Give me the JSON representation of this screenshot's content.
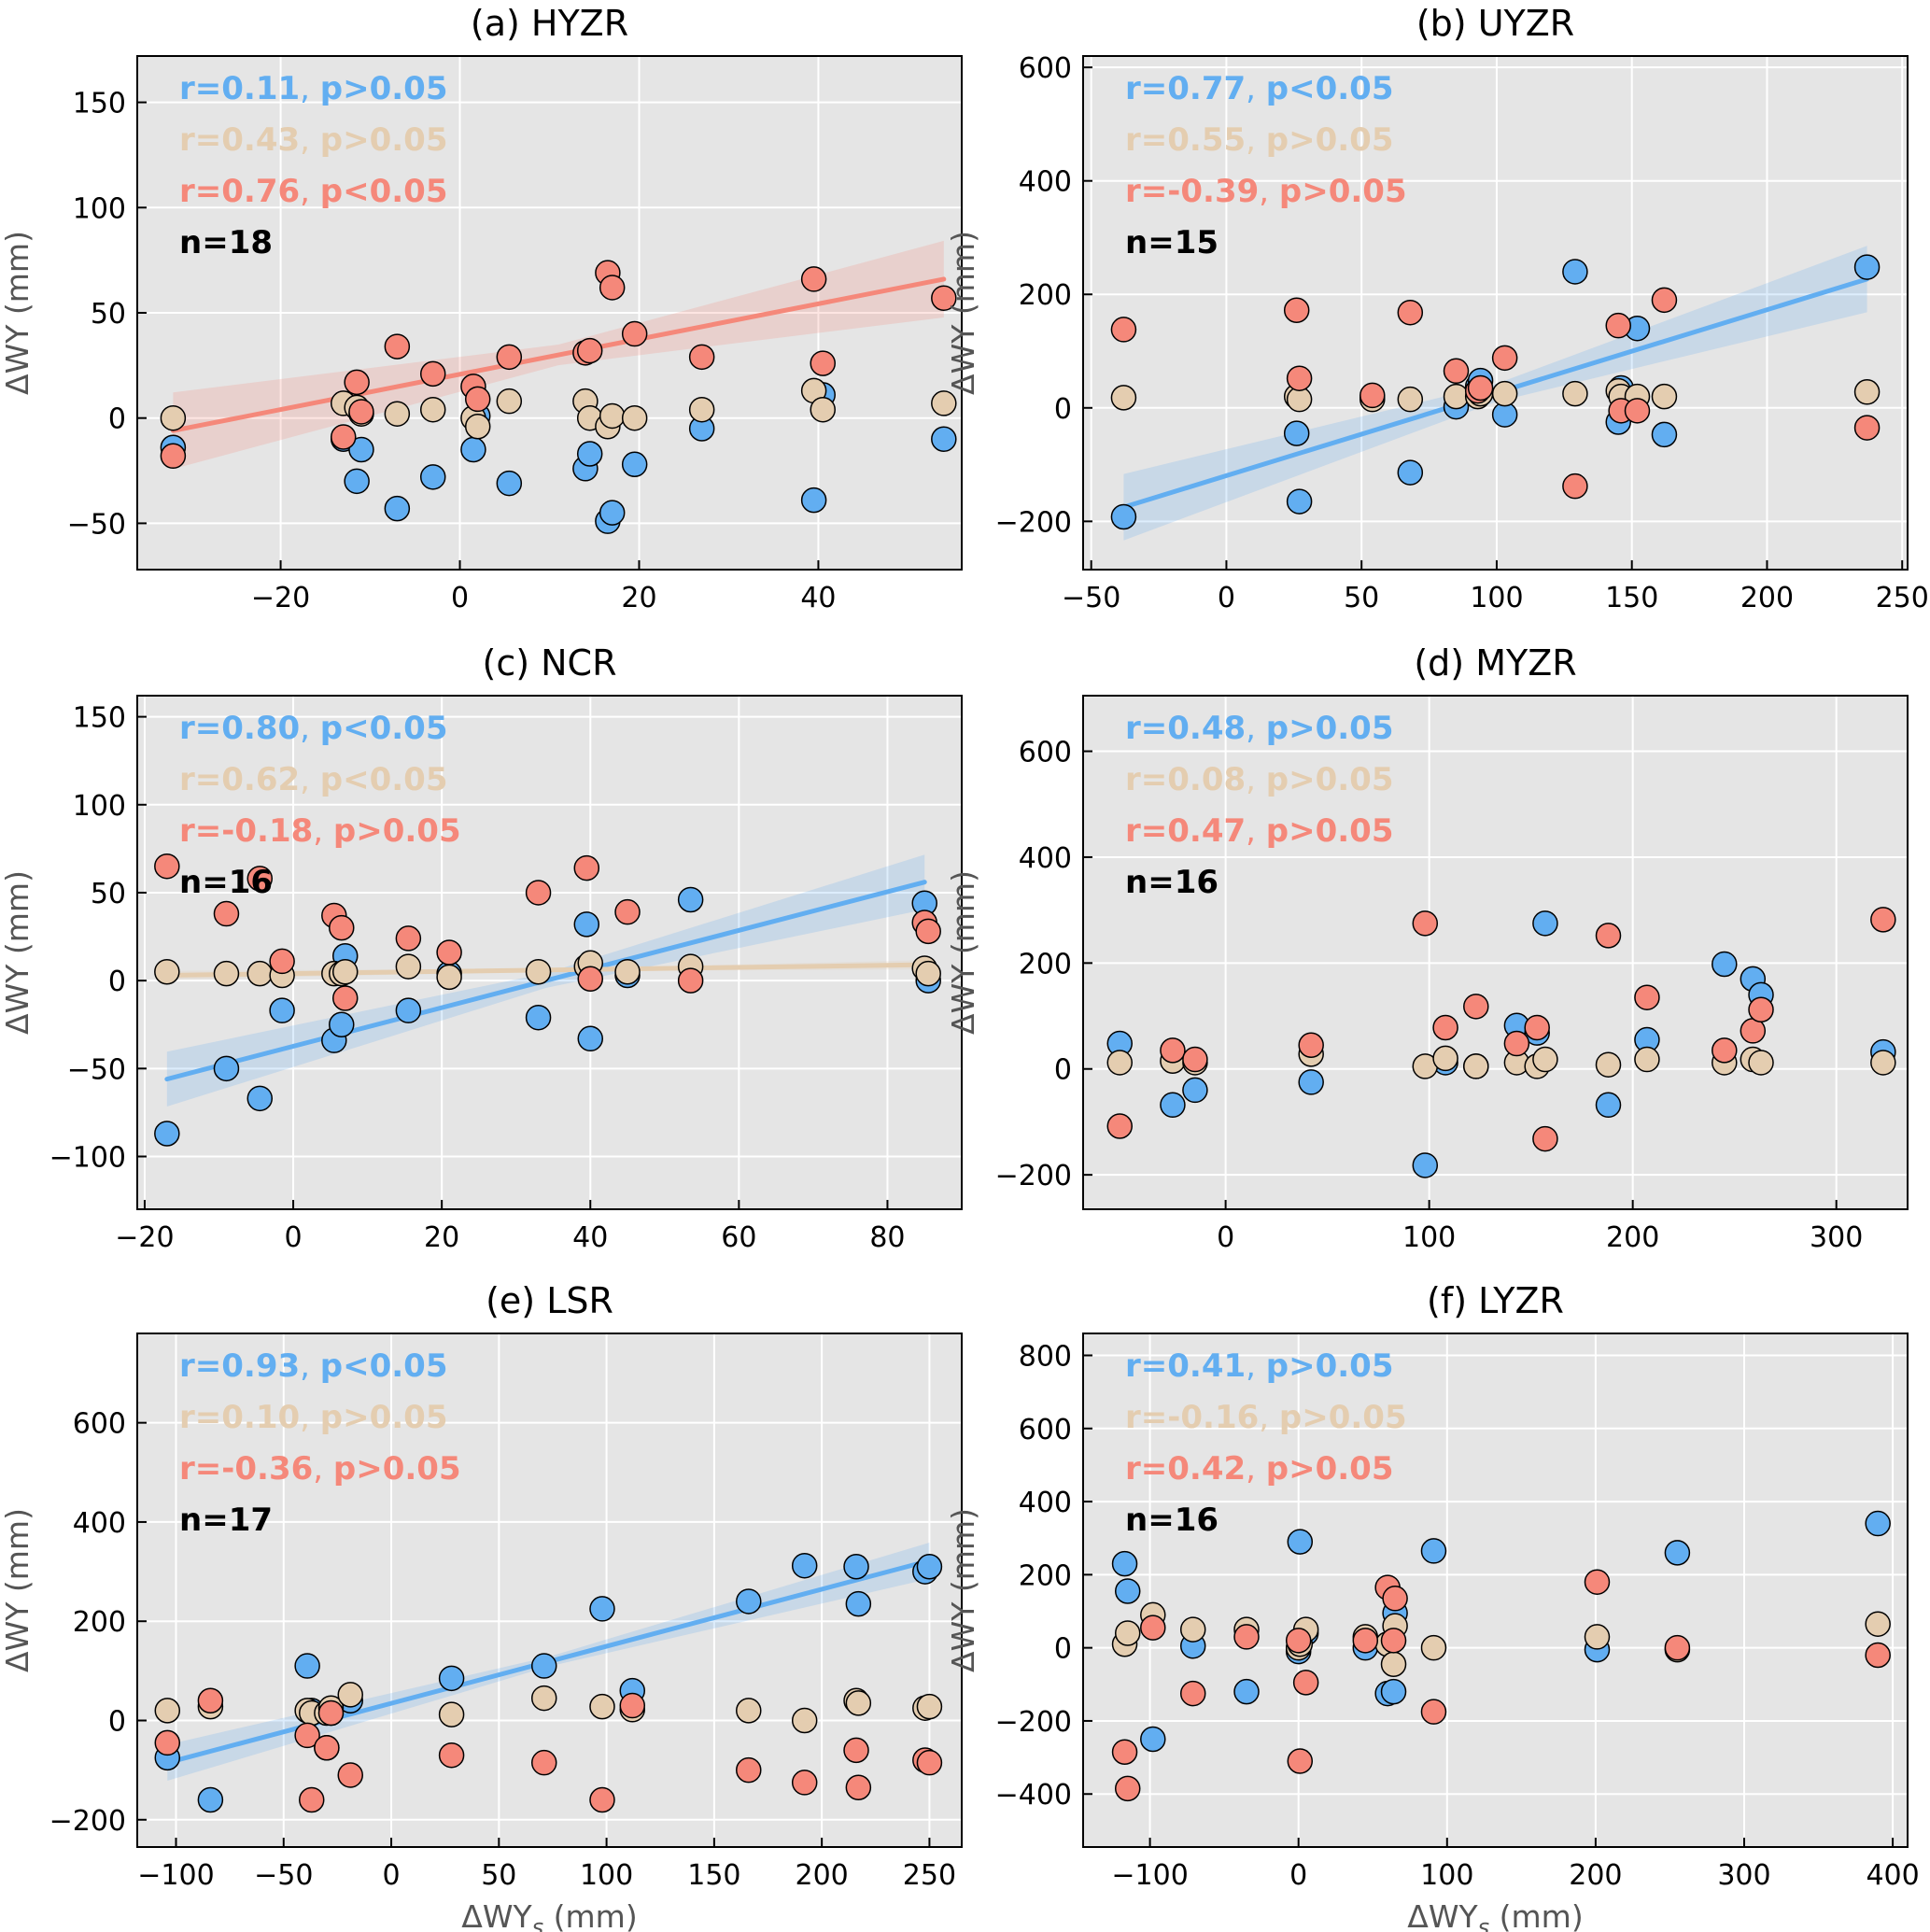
{
  "figure": {
    "xlabel": "ΔWYs (mm)",
    "xlabel_prefix": "ΔWY",
    "xlabel_subscript": "s",
    "xlabel_suffix": " (mm)",
    "ylabel": "ΔWY (mm)",
    "series_colors": {
      "blue": "#62aef1",
      "tan": "#e4cdb0",
      "red": "#f5887a"
    },
    "background": "#e5e5e5"
  },
  "chart_data": [
    {
      "id": "a",
      "type": "scatter",
      "title": "(a) HYZR",
      "xlim": [
        -36,
        56
      ],
      "ylim": [
        -72,
        172
      ],
      "xticks": [
        -20,
        0,
        20,
        40
      ],
      "yticks": [
        -50,
        0,
        50,
        100,
        150
      ],
      "stats": [
        {
          "r": "r=0.11",
          "p": "p>0.05",
          "color": "#62aef1"
        },
        {
          "r": "r=0.43",
          "p": "p>0.05",
          "color": "#e4cdb0"
        },
        {
          "r": "r=0.76",
          "p": "p<0.05",
          "color": "#f5887a"
        }
      ],
      "n": "n=18",
      "fits": [
        {
          "series": "red",
          "x": [
            -32,
            54
          ],
          "y": [
            -6,
            66
          ],
          "band": 14
        }
      ],
      "x": [
        -32,
        -13,
        -11.5,
        -11,
        -7,
        -3,
        1.5,
        2,
        5.5,
        14,
        14.5,
        16.5,
        17,
        19.5,
        27,
        39.5,
        40.5,
        54
      ],
      "series": [
        {
          "name": "blue",
          "values": [
            -14,
            -10,
            -30,
            -15,
            -43,
            -28,
            -15,
            1,
            -31,
            -24,
            -17,
            -49,
            -45,
            -22,
            -5,
            -39,
            11,
            -10
          ]
        },
        {
          "name": "tan",
          "values": [
            0,
            7,
            5,
            2,
            2,
            4,
            0,
            -4,
            8,
            8,
            0,
            -4,
            1,
            0,
            4,
            13,
            4,
            7
          ]
        },
        {
          "name": "red",
          "values": [
            -18,
            -9,
            17,
            3,
            34,
            21,
            15,
            9,
            29,
            31,
            32,
            69,
            62,
            40,
            29,
            66,
            26,
            57
          ]
        }
      ]
    },
    {
      "id": "b",
      "type": "scatter",
      "title": "(b) UYZR",
      "xlim": [
        -53,
        252
      ],
      "ylim": [
        -285,
        620
      ],
      "xticks": [
        -50,
        0,
        50,
        100,
        150,
        200,
        250
      ],
      "yticks": [
        -200,
        0,
        200,
        400,
        600
      ],
      "stats": [
        {
          "r": "r=0.77",
          "p": "p<0.05",
          "color": "#62aef1"
        },
        {
          "r": "r=0.55",
          "p": "p>0.05",
          "color": "#e4cdb0"
        },
        {
          "r": "r=-0.39",
          "p": "p>0.05",
          "color": "#f5887a"
        }
      ],
      "n": "n=15",
      "fits": [
        {
          "series": "blue",
          "x": [
            -38,
            237
          ],
          "y": [
            -175,
            227
          ],
          "band": 45
        }
      ],
      "x": [
        -38,
        26,
        27,
        54,
        68,
        85,
        93,
        94,
        103,
        129,
        145,
        146,
        152,
        162,
        237
      ],
      "series": [
        {
          "name": "blue",
          "values": [
            -192,
            -45,
            -165,
            18,
            -114,
            2,
            38,
            48,
            -12,
            240,
            -25,
            35,
            140,
            -47,
            248
          ]
        },
        {
          "name": "tan",
          "values": [
            18,
            20,
            15,
            15,
            15,
            20,
            20,
            25,
            25,
            25,
            30,
            20,
            20,
            20,
            28
          ]
        },
        {
          "name": "red",
          "values": [
            138,
            172,
            52,
            22,
            168,
            65,
            30,
            35,
            88,
            -138,
            145,
            -5,
            -5,
            190,
            -35
          ]
        }
      ]
    },
    {
      "id": "c",
      "type": "scatter",
      "title": "(c) NCR",
      "xlim": [
        -21,
        90
      ],
      "ylim": [
        -130,
        162
      ],
      "xticks": [
        -20,
        0,
        20,
        40,
        60,
        80
      ],
      "yticks": [
        -100,
        -50,
        0,
        50,
        100,
        150
      ],
      "stats": [
        {
          "r": "r=0.80",
          "p": "p<0.05",
          "color": "#62aef1"
        },
        {
          "r": "r=0.62",
          "p": "p<0.05",
          "color": "#e4cdb0"
        },
        {
          "r": "r=-0.18",
          "p": "p>0.05",
          "color": "#f5887a"
        }
      ],
      "n": "n=16",
      "fits": [
        {
          "series": "blue",
          "x": [
            -17,
            85
          ],
          "y": [
            -56,
            56
          ],
          "band": 12
        },
        {
          "series": "tan",
          "x": [
            -17,
            85
          ],
          "y": [
            3,
            9
          ],
          "band": 2
        }
      ],
      "x": [
        -17,
        -9,
        -4.5,
        -1.5,
        5.5,
        6.5,
        7,
        15.5,
        21,
        33,
        39.5,
        40,
        45,
        53.5,
        85,
        85.5
      ],
      "series": [
        {
          "name": "blue",
          "values": [
            -87,
            -50,
            -67,
            -17,
            -34,
            -25,
            14,
            -17,
            4,
            -21,
            32,
            -33,
            3,
            46,
            44,
            0
          ]
        },
        {
          "name": "tan",
          "values": [
            5,
            4,
            4,
            3,
            4,
            4,
            5,
            8,
            2,
            5,
            8,
            10,
            5,
            8,
            7,
            4
          ]
        },
        {
          "name": "red",
          "values": [
            65,
            38,
            58,
            11,
            37,
            30,
            -10,
            24,
            16,
            50,
            64,
            1,
            39,
            0,
            33,
            28
          ]
        }
      ]
    },
    {
      "id": "d",
      "type": "scatter",
      "title": "(d) MYZR",
      "xlim": [
        -70,
        335
      ],
      "ylim": [
        -265,
        705
      ],
      "xticks": [
        0,
        100,
        200,
        300
      ],
      "yticks": [
        -200,
        0,
        200,
        400,
        600
      ],
      "stats": [
        {
          "r": "r=0.48",
          "p": "p>0.05",
          "color": "#62aef1"
        },
        {
          "r": "r=0.08",
          "p": "p>0.05",
          "color": "#e4cdb0"
        },
        {
          "r": "r=0.47",
          "p": "p>0.05",
          "color": "#f5887a"
        }
      ],
      "n": "n=16",
      "fits": [],
      "x": [
        -52,
        -26,
        -15,
        42,
        98,
        108,
        123,
        143,
        153,
        157,
        188,
        207,
        245,
        259,
        263,
        323
      ],
      "series": [
        {
          "name": "blue",
          "values": [
            48,
            -68,
            -40,
            -25,
            -182,
            12,
            5,
            82,
            68,
            275,
            -68,
            55,
            198,
            170,
            140,
            32
          ]
        },
        {
          "name": "tan",
          "values": [
            12,
            15,
            12,
            28,
            5,
            20,
            5,
            12,
            5,
            18,
            8,
            18,
            12,
            18,
            12,
            12
          ]
        },
        {
          "name": "red",
          "values": [
            -108,
            35,
            18,
            45,
            275,
            78,
            118,
            48,
            78,
            -132,
            252,
            135,
            35,
            72,
            112,
            282
          ]
        }
      ]
    },
    {
      "id": "e",
      "type": "scatter",
      "title": "(e) LSR",
      "xlim": [
        -118,
        265
      ],
      "ylim": [
        -255,
        780
      ],
      "xticks": [
        -100,
        -50,
        0,
        50,
        100,
        150,
        200,
        250
      ],
      "yticks": [
        -200,
        0,
        200,
        400,
        600
      ],
      "stats": [
        {
          "r": "r=0.93",
          "p": "p<0.05",
          "color": "#62aef1"
        },
        {
          "r": "r=0.10",
          "p": "p>0.05",
          "color": "#e4cdb0"
        },
        {
          "r": "r=-0.36",
          "p": "p>0.05",
          "color": "#f5887a"
        }
      ],
      "n": "n=17",
      "fits": [
        {
          "series": "blue",
          "x": [
            -104,
            250
          ],
          "y": [
            -85,
            322
          ],
          "band": 28
        }
      ],
      "x": [
        -104,
        -84,
        -39,
        -37,
        -30,
        -28,
        -19,
        28,
        71,
        98,
        112,
        166,
        192,
        216,
        217,
        248,
        250
      ],
      "series": [
        {
          "name": "blue",
          "values": [
            -75,
            -160,
            110,
            20,
            -55,
            15,
            40,
            85,
            110,
            225,
            60,
            240,
            312,
            310,
            235,
            300,
            310
          ]
        },
        {
          "name": "tan",
          "values": [
            20,
            28,
            20,
            15,
            15,
            25,
            52,
            12,
            45,
            28,
            22,
            20,
            0,
            40,
            35,
            25,
            28
          ]
        },
        {
          "name": "red",
          "values": [
            -45,
            40,
            -30,
            -160,
            -55,
            15,
            -110,
            -70,
            -85,
            -160,
            30,
            -100,
            -125,
            -60,
            -135,
            -80,
            -85
          ]
        }
      ]
    },
    {
      "id": "f",
      "type": "scatter",
      "title": "(f) LYZR",
      "xlim": [
        -145,
        410
      ],
      "ylim": [
        -545,
        860
      ],
      "xticks": [
        -100,
        0,
        100,
        200,
        300,
        400
      ],
      "yticks": [
        -400,
        -200,
        0,
        200,
        400,
        600,
        800
      ],
      "stats": [
        {
          "r": "r=0.41",
          "p": "p>0.05",
          "color": "#62aef1"
        },
        {
          "r": "r=-0.16",
          "p": "p>0.05",
          "color": "#e4cdb0"
        },
        {
          "r": "r=0.42",
          "p": "p>0.05",
          "color": "#f5887a"
        }
      ],
      "n": "n=16",
      "fits": [],
      "x": [
        -117,
        -115,
        -98,
        -71,
        -35,
        0,
        1,
        5,
        45,
        60,
        65,
        91,
        201,
        255,
        390,
        64
      ],
      "series": [
        {
          "name": "blue",
          "values": [
            230,
            155,
            -250,
            5,
            -120,
            -10,
            290,
            40,
            0,
            -125,
            95,
            265,
            -5,
            260,
            340,
            -120
          ]
        },
        {
          "name": "tan",
          "values": [
            10,
            40,
            90,
            50,
            50,
            0,
            10,
            50,
            30,
            10,
            60,
            0,
            30,
            -5,
            65,
            -45
          ]
        },
        {
          "name": "red",
          "values": [
            -285,
            -385,
            55,
            -125,
            30,
            20,
            -310,
            -95,
            20,
            165,
            135,
            -175,
            180,
            0,
            -20,
            20
          ]
        }
      ]
    }
  ]
}
